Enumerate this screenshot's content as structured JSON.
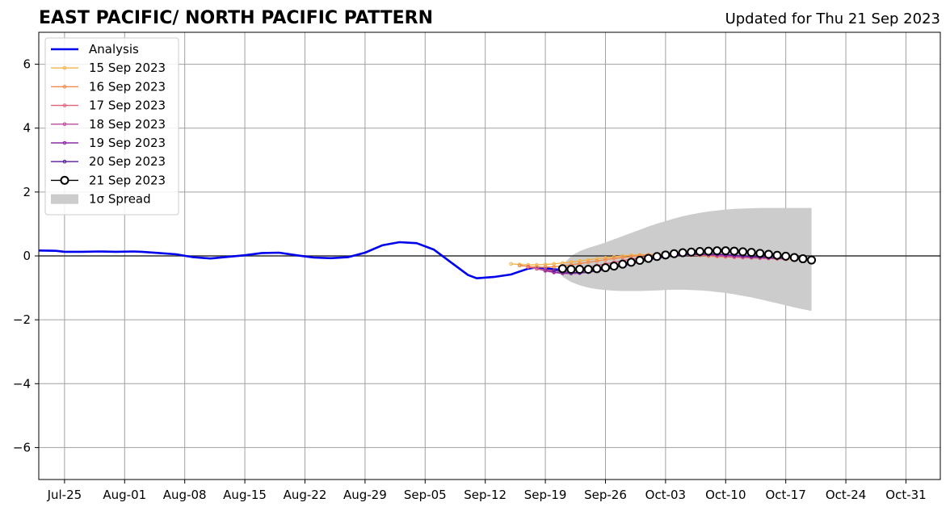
{
  "chart_data": {
    "type": "line",
    "title": "EAST PACIFIC/ NORTH PACIFIC PATTERN",
    "subtitle": "Updated for Thu 21 Sep 2023",
    "x_axis": {
      "type": "date",
      "range": [
        "2023-07-22",
        "2023-11-04"
      ],
      "ticks": [
        "2023-07-25",
        "2023-08-01",
        "2023-08-08",
        "2023-08-15",
        "2023-08-22",
        "2023-08-29",
        "2023-09-05",
        "2023-09-12",
        "2023-09-19",
        "2023-09-26",
        "2023-10-03",
        "2023-10-10",
        "2023-10-17",
        "2023-10-24",
        "2023-10-31"
      ],
      "tick_labels": [
        "Jul-25",
        "Aug-01",
        "Aug-08",
        "Aug-15",
        "Aug-22",
        "Aug-29",
        "Sep-05",
        "Sep-12",
        "Sep-19",
        "Sep-26",
        "Oct-03",
        "Oct-10",
        "Oct-17",
        "Oct-24",
        "Oct-31"
      ]
    },
    "y_axis": {
      "range": [
        -7,
        7
      ],
      "ticks": [
        -6,
        -4,
        -2,
        0,
        2,
        4,
        6
      ],
      "tick_labels": [
        "−6",
        "−4",
        "−2",
        "0",
        "2",
        "4",
        "6"
      ]
    },
    "grid": true,
    "zero_line": true,
    "legend_position": "top-left",
    "analysis": {
      "name": "Analysis",
      "color": "#0000ee",
      "points": [
        [
          "2023-07-22",
          0.17
        ],
        [
          "2023-07-24",
          0.16
        ],
        [
          "2023-07-25",
          0.13
        ],
        [
          "2023-07-27",
          0.13
        ],
        [
          "2023-07-29",
          0.14
        ],
        [
          "2023-07-31",
          0.13
        ],
        [
          "2023-08-02",
          0.14
        ],
        [
          "2023-08-03",
          0.13
        ],
        [
          "2023-08-05",
          0.09
        ],
        [
          "2023-08-07",
          0.05
        ],
        [
          "2023-08-09",
          -0.04
        ],
        [
          "2023-08-11",
          -0.08
        ],
        [
          "2023-08-13",
          -0.03
        ],
        [
          "2023-08-15",
          0.02
        ],
        [
          "2023-08-17",
          0.09
        ],
        [
          "2023-08-19",
          0.1
        ],
        [
          "2023-08-21",
          0.02
        ],
        [
          "2023-08-23",
          -0.05
        ],
        [
          "2023-08-25",
          -0.07
        ],
        [
          "2023-08-27",
          -0.04
        ],
        [
          "2023-08-29",
          0.1
        ],
        [
          "2023-08-31",
          0.33
        ],
        [
          "2023-09-02",
          0.43
        ],
        [
          "2023-09-04",
          0.4
        ],
        [
          "2023-09-06",
          0.2
        ],
        [
          "2023-09-08",
          -0.2
        ],
        [
          "2023-09-10",
          -0.6
        ],
        [
          "2023-09-11",
          -0.7
        ],
        [
          "2023-09-13",
          -0.66
        ],
        [
          "2023-09-15",
          -0.58
        ],
        [
          "2023-09-17",
          -0.4
        ],
        [
          "2023-09-18",
          -0.36
        ],
        [
          "2023-09-20",
          -0.42
        ],
        [
          "2023-09-21",
          -0.44
        ]
      ]
    },
    "forecasts": [
      {
        "name": "15 Sep 2023",
        "color": "#f4b24a",
        "start": "2023-09-15",
        "values": [
          -0.25,
          -0.27,
          -0.28,
          -0.28,
          -0.27,
          -0.25,
          -0.22,
          -0.19,
          -0.16,
          -0.12,
          -0.09,
          -0.06,
          -0.03,
          0.0,
          0.02,
          0.03,
          0.04,
          0.05,
          0.05,
          0.04,
          0.03,
          0.02,
          0.01,
          -0.01,
          -0.02,
          -0.03,
          -0.04,
          -0.05,
          -0.06,
          -0.07,
          -0.08,
          -0.09,
          -0.1,
          -0.1
        ]
      },
      {
        "name": "16 Sep 2023",
        "color": "#f28a4a",
        "start": "2023-09-16",
        "values": [
          -0.3,
          -0.33,
          -0.35,
          -0.35,
          -0.34,
          -0.31,
          -0.28,
          -0.24,
          -0.2,
          -0.16,
          -0.12,
          -0.08,
          -0.05,
          -0.02,
          0.01,
          0.03,
          0.04,
          0.05,
          0.05,
          0.04,
          0.03,
          0.02,
          0.0,
          -0.02,
          -0.03,
          -0.04,
          -0.05,
          -0.06,
          -0.07,
          -0.08,
          -0.09,
          -0.1
        ]
      },
      {
        "name": "17 Sep 2023",
        "color": "#e0627a",
        "start": "2023-09-17",
        "values": [
          -0.35,
          -0.4,
          -0.44,
          -0.46,
          -0.46,
          -0.44,
          -0.4,
          -0.35,
          -0.3,
          -0.25,
          -0.2,
          -0.15,
          -0.1,
          -0.06,
          -0.03,
          0.0,
          0.02,
          0.03,
          0.04,
          0.04,
          0.03,
          0.02,
          0.0,
          -0.02,
          -0.04,
          -0.05,
          -0.06,
          -0.07,
          -0.08,
          -0.09,
          -0.1
        ]
      },
      {
        "name": "18 Sep 2023",
        "color": "#c04a9a",
        "start": "2023-09-18",
        "values": [
          -0.4,
          -0.47,
          -0.52,
          -0.55,
          -0.55,
          -0.53,
          -0.49,
          -0.44,
          -0.38,
          -0.32,
          -0.26,
          -0.2,
          -0.15,
          -0.1,
          -0.06,
          -0.03,
          0.0,
          0.02,
          0.03,
          0.03,
          0.02,
          0.01,
          0.0,
          -0.02,
          -0.03,
          -0.05,
          -0.06,
          -0.07,
          -0.08,
          -0.09
        ]
      },
      {
        "name": "19 Sep 2023",
        "color": "#8c2aa8",
        "start": "2023-09-19",
        "values": [
          -0.45,
          -0.5,
          -0.54,
          -0.55,
          -0.54,
          -0.51,
          -0.47,
          -0.42,
          -0.36,
          -0.3,
          -0.24,
          -0.18,
          -0.12,
          -0.07,
          -0.03,
          0.0,
          0.02,
          0.04,
          0.05,
          0.05,
          0.04,
          0.03,
          0.01,
          0.0,
          -0.02,
          -0.03,
          -0.05,
          -0.06,
          -0.07
        ]
      },
      {
        "name": "20 Sep 2023",
        "color": "#5a1a9a",
        "start": "2023-09-20",
        "values": [
          -0.45,
          -0.5,
          -0.52,
          -0.52,
          -0.5,
          -0.47,
          -0.42,
          -0.37,
          -0.31,
          -0.25,
          -0.19,
          -0.13,
          -0.08,
          -0.03,
          0.0,
          0.03,
          0.05,
          0.06,
          0.06,
          0.05,
          0.04,
          0.02,
          0.0,
          -0.02,
          -0.03,
          -0.05,
          -0.06,
          -0.07
        ]
      },
      {
        "name": "21 Sep 2023",
        "color": "#000000",
        "start": "2023-09-21",
        "marker": "open-circle",
        "values": [
          -0.4,
          -0.42,
          -0.42,
          -0.42,
          -0.4,
          -0.37,
          -0.32,
          -0.26,
          -0.2,
          -0.14,
          -0.08,
          -0.02,
          0.03,
          0.07,
          0.1,
          0.12,
          0.14,
          0.15,
          0.16,
          0.16,
          0.15,
          0.13,
          0.11,
          0.08,
          0.05,
          0.02,
          -0.01,
          -0.05,
          -0.09,
          -0.13
        ]
      }
    ],
    "spread": {
      "name": "1σ Spread",
      "color": "#cccccc",
      "start": "2023-09-21",
      "end": "2023-10-20",
      "upper": [
        -0.3,
        0.0,
        0.15,
        0.25,
        0.33,
        0.42,
        0.52,
        0.62,
        0.72,
        0.82,
        0.92,
        1.01,
        1.09,
        1.17,
        1.24,
        1.3,
        1.35,
        1.39,
        1.42,
        1.45,
        1.47,
        1.48,
        1.49,
        1.5,
        1.5,
        1.5,
        1.5,
        1.5,
        1.5,
        1.5
      ],
      "lower": [
        -0.65,
        -0.82,
        -0.92,
        -0.99,
        -1.04,
        -1.07,
        -1.09,
        -1.1,
        -1.1,
        -1.1,
        -1.09,
        -1.08,
        -1.07,
        -1.06,
        -1.06,
        -1.07,
        -1.08,
        -1.1,
        -1.13,
        -1.16,
        -1.2,
        -1.25,
        -1.3,
        -1.36,
        -1.42,
        -1.48,
        -1.55,
        -1.61,
        -1.67,
        -1.72
      ]
    },
    "legend": [
      {
        "label": "Analysis",
        "kind": "line"
      },
      {
        "label": "15 Sep 2023",
        "kind": "marker-line"
      },
      {
        "label": "16 Sep 2023",
        "kind": "marker-line"
      },
      {
        "label": "17 Sep 2023",
        "kind": "marker-line"
      },
      {
        "label": "18 Sep 2023",
        "kind": "marker-line"
      },
      {
        "label": "19 Sep 2023",
        "kind": "marker-line"
      },
      {
        "label": "20 Sep 2023",
        "kind": "marker-line"
      },
      {
        "label": "21 Sep 2023",
        "kind": "open-circle-line"
      },
      {
        "label": "1σ Spread",
        "kind": "patch"
      }
    ]
  }
}
